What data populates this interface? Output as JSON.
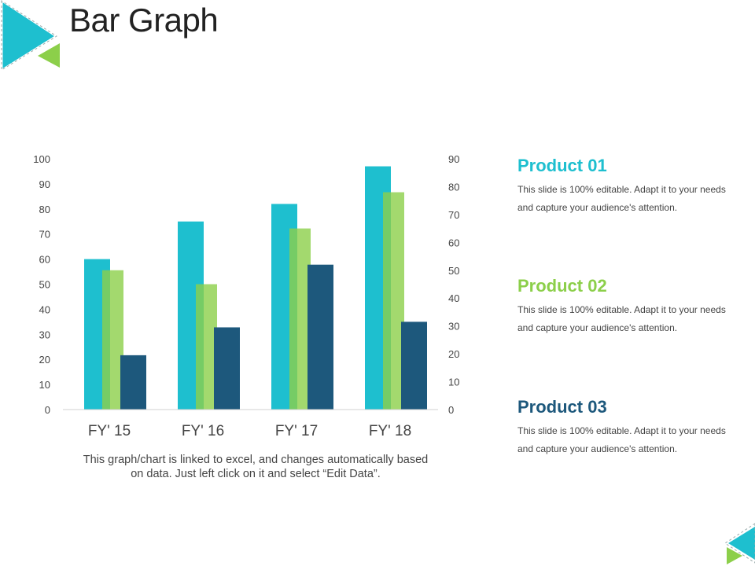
{
  "slide": {
    "title": "Bar Graph",
    "note": "This graph/chart is linked to excel, and changes automatically based on data. Just left click on it and select “Edit Data”."
  },
  "colors": {
    "accent_cyan": "#1ebfcf",
    "accent_green": "#8ccf4a",
    "accent_navy": "#1d587c",
    "axis_line": "#d0d0d0"
  },
  "legend": [
    {
      "name": "Product 01",
      "color": "#1ebfcf",
      "description": "This slide is 100% editable. Adapt it to your needs and capture your audience's attention."
    },
    {
      "name": "Product 02",
      "color": "#8ccf4a",
      "description": "This slide is 100% editable. Adapt it to your needs and capture your audience's attention."
    },
    {
      "name": "Product 03",
      "color": "#1d587c",
      "description": "This slide is 100% editable. Adapt it to your needs and capture your audience's attention."
    }
  ],
  "chart_data": {
    "type": "bar",
    "categories": [
      "FY' 15",
      "FY' 16",
      "FY' 17",
      "FY' 18"
    ],
    "series": [
      {
        "name": "Product 01",
        "color": "#1ebfcf",
        "axis": "left",
        "values": [
          60,
          75,
          82,
          97
        ]
      },
      {
        "name": "Product 02",
        "color": "#8ccf4a",
        "axis": "right",
        "values": [
          50,
          45,
          65,
          78
        ]
      },
      {
        "name": "Product 03",
        "color": "#1d587c",
        "axis": "right",
        "values": [
          19.5,
          29.5,
          52,
          31.5
        ]
      }
    ],
    "y_left": {
      "min": 0,
      "max": 100,
      "ticks": [
        "0",
        "10",
        "20",
        "30",
        "40",
        "50",
        "60",
        "70",
        "80",
        "90",
        "100"
      ]
    },
    "y_right": {
      "min": 0,
      "max": 90,
      "ticks": [
        "0",
        "10",
        "20",
        "30",
        "40",
        "50",
        "60",
        "70",
        "80",
        "90"
      ]
    },
    "grid": false,
    "legend_position": "right"
  }
}
